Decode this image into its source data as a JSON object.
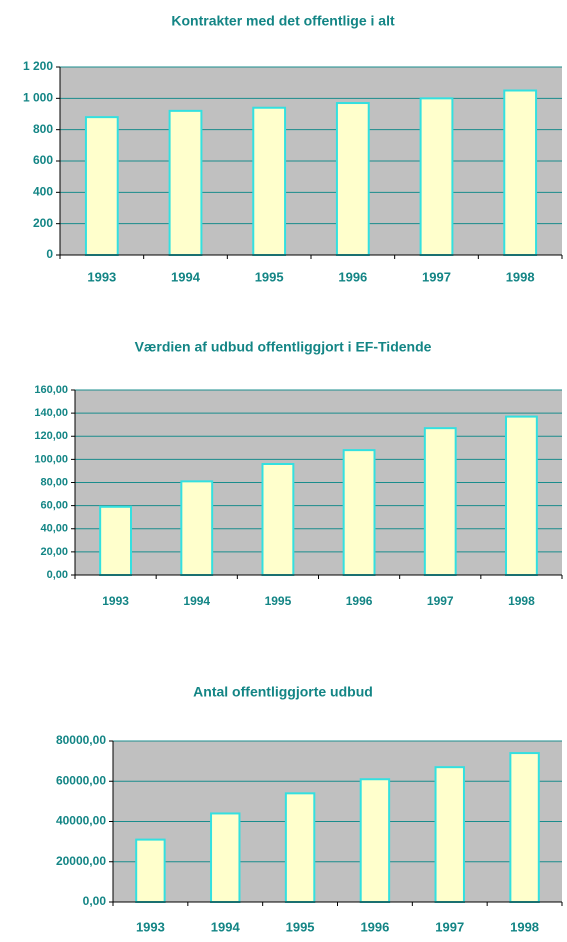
{
  "chart_data": [
    {
      "type": "bar",
      "title": "Kontrakter med det offentlige i alt",
      "categories": [
        "1993",
        "1994",
        "1995",
        "1996",
        "1997",
        "1998"
      ],
      "values": [
        880,
        920,
        940,
        970,
        1000,
        1050
      ],
      "color": "#ffffcc",
      "edge_color": "#33e0e0",
      "background": "#c0c0c0",
      "grid_color": "#1a8c8c",
      "ylim": [
        0,
        1200
      ],
      "yticks": [
        0,
        200,
        400,
        600,
        800,
        {
          "value": 1000,
          "label": "1 000"
        },
        {
          "value": 1200,
          "label": "1 200"
        }
      ],
      "grid": true
    },
    {
      "type": "bar",
      "title": "Værdien af udbud offentliggjort i EF-Tidende",
      "categories": [
        "1993",
        "1994",
        "1995",
        "1996",
        "1997",
        "1998"
      ],
      "values": [
        59,
        81,
        96,
        108,
        127,
        137
      ],
      "color": "#ffffcc",
      "edge_color": "#33e0e0",
      "background": "#c0c0c0",
      "grid_color": "#1a8c8c",
      "ylim": [
        0,
        160
      ],
      "yticks": [
        {
          "value": 0,
          "label": "0,00"
        },
        {
          "value": 20,
          "label": "20,00"
        },
        {
          "value": 40,
          "label": "40,00"
        },
        {
          "value": 60,
          "label": "60,00"
        },
        {
          "value": 80,
          "label": "80,00"
        },
        {
          "value": 100,
          "label": "100,00"
        },
        {
          "value": 120,
          "label": "120,00"
        },
        {
          "value": 140,
          "label": "140,00"
        },
        {
          "value": 160,
          "label": "160,00"
        }
      ],
      "grid": true
    },
    {
      "type": "bar",
      "title": "Antal offentliggjorte udbud",
      "categories": [
        "1993",
        "1994",
        "1995",
        "1996",
        "1997",
        "1998"
      ],
      "values": [
        31000,
        44000,
        54000,
        61000,
        67000,
        74000
      ],
      "color": "#ffffcc",
      "edge_color": "#33e0e0",
      "background": "#c0c0c0",
      "grid_color": "#1a8c8c",
      "ylim": [
        0,
        80000
      ],
      "yticks": [
        {
          "value": 0,
          "label": "0,00"
        },
        {
          "value": 20000,
          "label": "20000,00"
        },
        {
          "value": 40000,
          "label": "40000,00"
        },
        {
          "value": 60000,
          "label": "60000,00"
        },
        {
          "value": 80000,
          "label": "80000,00"
        }
      ],
      "grid": true
    }
  ]
}
